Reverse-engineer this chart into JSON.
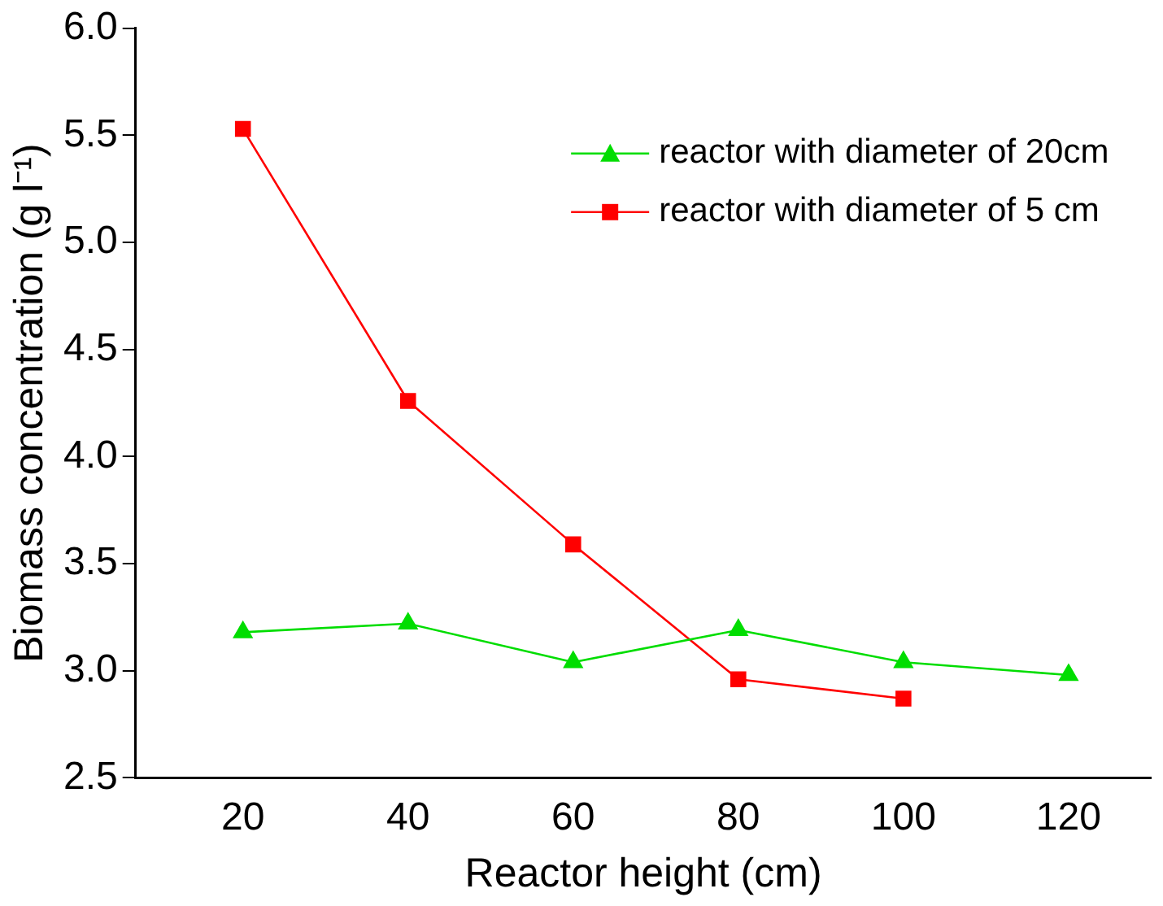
{
  "chart_data": {
    "type": "line",
    "xlabel": "Reactor height (cm)",
    "ylabel": "Biomass concentration (g l⁻¹)",
    "xlim": [
      7,
      130
    ],
    "xticks": [
      20,
      40,
      60,
      80,
      100,
      120
    ],
    "ylim": [
      2.5,
      6.0
    ],
    "yticks": [
      2.5,
      {
        "value": 3,
        "label": "3.0"
      },
      3.5,
      {
        "value": 4,
        "label": "4.0"
      },
      4.5,
      {
        "value": 5,
        "label": "5.0"
      },
      5.5,
      {
        "value": 6,
        "label": "6.0"
      }
    ],
    "grid": false,
    "legend": "top right",
    "series": [
      {
        "name": "reactor with diameter of 20cm",
        "color": "#00dd00",
        "marker": "triangle",
        "x": [
          20,
          40,
          60,
          80,
          100,
          120
        ],
        "values": [
          3.18,
          3.22,
          3.04,
          3.19,
          3.04,
          2.98
        ]
      },
      {
        "name": "reactor with diameter of 5 cm",
        "color": "#ff0000",
        "marker": "square",
        "x": [
          20,
          40,
          60,
          80,
          100
        ],
        "values": [
          5.53,
          4.26,
          3.59,
          2.96,
          2.87
        ]
      }
    ]
  }
}
